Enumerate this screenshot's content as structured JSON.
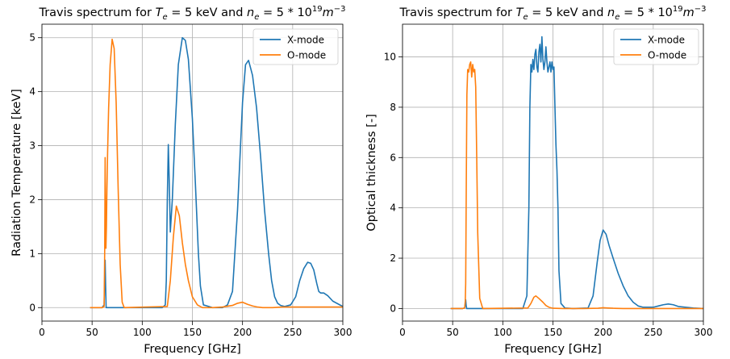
{
  "chart_data": [
    {
      "type": "line",
      "title": "Travis spectrum for T_e = 5 keV and n_e = 5*10^19 m^-3",
      "title_parts": {
        "prefix": "Travis spectrum for ",
        "te_sym": "T",
        "te_sub": "e",
        "te_val": " = 5 keV and ",
        "ne_sym": "n",
        "ne_sub": "e",
        "ne_val": " = 5 * 10",
        "ne_exp": "19",
        "unit": "m",
        "unit_exp": "−3"
      },
      "xlabel": "Frequency [GHz]",
      "ylabel": "Radiation Temperature [keV]",
      "xlim": [
        0,
        300
      ],
      "ylim": [
        -0.25,
        5.25
      ],
      "xticks": [
        0,
        50,
        100,
        150,
        200,
        250,
        300
      ],
      "yticks": [
        0,
        1,
        2,
        3,
        4,
        5
      ],
      "grid": true,
      "legend": "top-right",
      "series": [
        {
          "name": "X-mode",
          "color": "#1f77b4",
          "x": [
            48,
            60,
            62,
            62.6,
            63,
            63.5,
            64,
            70,
            120,
            123,
            124,
            125,
            126,
            127,
            128,
            130,
            133,
            136,
            140,
            143,
            146,
            150,
            153,
            156,
            158,
            161,
            170,
            180,
            185,
            190,
            195,
            200,
            203,
            206,
            210,
            214,
            218,
            222,
            226,
            229,
            232,
            235,
            238,
            242,
            248,
            253,
            257,
            261,
            265,
            268,
            271,
            274,
            276,
            278,
            281,
            285,
            290,
            300
          ],
          "y": [
            0,
            0,
            0.05,
            0.6,
            0.88,
            0.4,
            0,
            0,
            0,
            0.05,
            0.5,
            2.0,
            3.02,
            2.3,
            1.4,
            2.0,
            3.4,
            4.5,
            5.0,
            4.95,
            4.6,
            3.5,
            2.3,
            1.0,
            0.4,
            0.05,
            0,
            0,
            0.05,
            0.3,
            1.8,
            3.8,
            4.5,
            4.58,
            4.3,
            3.7,
            2.8,
            1.8,
            1.0,
            0.5,
            0.2,
            0.08,
            0.04,
            0.02,
            0.05,
            0.2,
            0.5,
            0.72,
            0.84,
            0.82,
            0.7,
            0.45,
            0.3,
            0.27,
            0.27,
            0.22,
            0.12,
            0.02
          ]
        },
        {
          "name": "O-mode",
          "color": "#ff7f0e",
          "x": [
            48,
            60,
            62,
            62.6,
            63,
            63.4,
            63.8,
            64.3,
            64.8,
            65.5,
            66.5,
            68,
            70,
            72,
            74,
            76,
            78,
            80,
            82,
            125,
            128,
            131,
            134,
            137,
            140,
            143,
            146,
            150,
            155,
            160,
            170,
            180,
            190,
            195,
            200,
            205,
            210,
            215,
            220,
            230,
            240,
            260,
            280,
            300
          ],
          "y": [
            0,
            0,
            0.02,
            1.1,
            2.78,
            1.8,
            1.1,
            1.5,
            2.2,
            2.9,
            3.7,
            4.5,
            4.97,
            4.8,
            3.8,
            2.2,
            0.8,
            0.1,
            0,
            0.02,
            0.5,
            1.3,
            1.88,
            1.7,
            1.2,
            0.8,
            0.5,
            0.2,
            0.05,
            0,
            0,
            0.01,
            0.04,
            0.08,
            0.1,
            0.06,
            0.03,
            0.01,
            0,
            0,
            0.01,
            0.01,
            0.01,
            0.01
          ]
        }
      ]
    },
    {
      "type": "line",
      "title": "Travis spectrum for T_e = 5 keV and n_e = 5*10^19 m^-3",
      "title_parts": {
        "prefix": "Travis spectrum for ",
        "te_sym": "T",
        "te_sub": "e",
        "te_val": " = 5 keV and ",
        "ne_sym": "n",
        "ne_sub": "e",
        "ne_val": " = 5 * 10",
        "ne_exp": "19",
        "unit": "m",
        "unit_exp": "−3"
      },
      "xlabel": "Frequency [GHz]",
      "ylabel": "Optical thickness [-]",
      "xlim": [
        0,
        300
      ],
      "ylim": [
        -0.5,
        11.3
      ],
      "xticks": [
        0,
        50,
        100,
        150,
        200,
        250,
        300
      ],
      "yticks": [
        0,
        2,
        4,
        6,
        8,
        10
      ],
      "grid": true,
      "legend": "top-right",
      "series": [
        {
          "name": "X-mode",
          "color": "#1f77b4",
          "x": [
            48,
            60,
            62,
            62.6,
            63,
            63.5,
            64,
            70,
            120,
            124,
            126,
            127,
            128,
            129,
            130,
            131,
            132,
            133,
            134,
            135,
            136,
            137,
            138,
            139,
            140,
            141,
            142,
            143,
            144,
            145,
            146,
            147,
            148,
            149,
            150,
            151,
            152,
            153,
            154,
            155,
            156,
            158,
            162,
            170,
            185,
            190,
            194,
            197,
            200,
            203,
            206,
            210,
            215,
            220,
            225,
            230,
            235,
            240,
            250,
            255,
            260,
            265,
            270,
            275,
            280,
            290,
            300
          ],
          "y": [
            0,
            0,
            0.02,
            0.2,
            0.35,
            0.1,
            0,
            0,
            0,
            0.5,
            4.0,
            8.0,
            9.7,
            9.4,
            9.9,
            9.5,
            10.1,
            10.3,
            9.6,
            9.4,
            10.2,
            10.5,
            9.8,
            10.8,
            9.9,
            9.5,
            9.8,
            10.4,
            9.8,
            9.4,
            9.6,
            9.8,
            9.4,
            9.8,
            9.5,
            9.6,
            8.0,
            6.5,
            5.5,
            4.0,
            1.5,
            0.2,
            0.02,
            0,
            0.02,
            0.5,
            1.8,
            2.7,
            3.12,
            2.95,
            2.5,
            2.0,
            1.4,
            0.9,
            0.5,
            0.25,
            0.1,
            0.05,
            0.05,
            0.1,
            0.15,
            0.18,
            0.15,
            0.08,
            0.06,
            0.02,
            0
          ]
        },
        {
          "name": "O-mode",
          "color": "#ff7f0e",
          "x": [
            48,
            60,
            62,
            62.6,
            63,
            63.6,
            64.2,
            65,
            66,
            67,
            68,
            69,
            70,
            71,
            72,
            73,
            74,
            75,
            77,
            80,
            125,
            128,
            131,
            133,
            136,
            140,
            143,
            146,
            150,
            160,
            180,
            195,
            200,
            205,
            210,
            220,
            240,
            260,
            280,
            300
          ],
          "y": [
            0,
            0,
            0.02,
            0.3,
            1.0,
            5.0,
            8.5,
            9.5,
            9.4,
            9.7,
            9.8,
            9.2,
            9.7,
            9.4,
            9.5,
            8.8,
            6.0,
            3.0,
            0.4,
            0,
            0.02,
            0.2,
            0.45,
            0.5,
            0.4,
            0.25,
            0.12,
            0.05,
            0.01,
            0,
            0,
            0.01,
            0.03,
            0.02,
            0.01,
            0,
            0,
            0,
            0,
            0
          ]
        }
      ]
    }
  ]
}
